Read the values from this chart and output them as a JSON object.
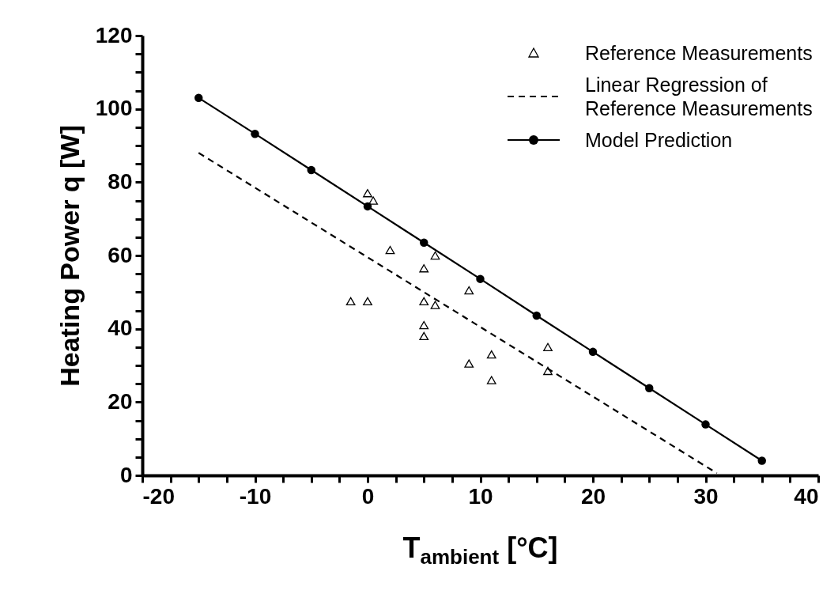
{
  "chart_data": {
    "type": "scatter",
    "xlabel": "T$_{ambient}$ [°C]",
    "ylabel": "Heating Power q [W]",
    "xlim": [
      -20,
      40
    ],
    "ylim": [
      0,
      120
    ],
    "xticks": [
      -20,
      {
        "value": -17.5,
        "label": null
      },
      {
        "value": -15,
        "label": null
      },
      {
        "value": -12.5,
        "label": null
      },
      -10,
      {
        "value": -7.5,
        "label": null
      },
      {
        "value": -5,
        "label": null
      },
      {
        "value": -2.5,
        "label": null
      },
      0,
      {
        "value": 2.5,
        "label": null
      },
      {
        "value": 5,
        "label": null
      },
      {
        "value": 7.5,
        "label": null
      },
      10,
      {
        "value": 12.5,
        "label": null
      },
      {
        "value": 15,
        "label": null
      },
      {
        "value": 17.5,
        "label": null
      },
      20,
      {
        "value": 22.5,
        "label": null
      },
      {
        "value": 25,
        "label": null
      },
      {
        "value": 27.5,
        "label": null
      },
      30,
      {
        "value": 32.5,
        "label": null
      },
      {
        "value": 35,
        "label": null
      },
      {
        "value": 37.5,
        "label": null
      },
      40
    ],
    "yticks": [
      0,
      {
        "value": 5,
        "label": null
      },
      {
        "value": 10,
        "label": null
      },
      {
        "value": 15,
        "label": null
      },
      20,
      {
        "value": 25,
        "label": null
      },
      {
        "value": 30,
        "label": null
      },
      {
        "value": 35,
        "label": null
      },
      40,
      {
        "value": 45,
        "label": null
      },
      {
        "value": 50,
        "label": null
      },
      {
        "value": 55,
        "label": null
      },
      60,
      {
        "value": 65,
        "label": null
      },
      {
        "value": 70,
        "label": null
      },
      {
        "value": 75,
        "label": null
      },
      80,
      {
        "value": 85,
        "label": null
      },
      {
        "value": 90,
        "label": null
      },
      {
        "value": 95,
        "label": null
      },
      100,
      {
        "value": 105,
        "label": null
      },
      {
        "value": 110,
        "label": null
      },
      {
        "value": 115,
        "label": null
      },
      120
    ],
    "legend": "top right",
    "grid": false,
    "series": [
      {
        "name": "Reference Measurements",
        "marker": "triangle",
        "color": "#000000",
        "x": [
          0,
          0.5,
          2,
          6,
          5,
          -1.5,
          0,
          5,
          6,
          9,
          5,
          5,
          9,
          11,
          11,
          16,
          16
        ],
        "values": [
          77,
          75,
          61.5,
          60,
          56.5,
          47.5,
          47.5,
          47.5,
          46.5,
          50.5,
          41,
          38,
          30.5,
          33,
          26,
          35,
          28.5
        ]
      },
      {
        "name": "Linear Regression of Reference Measurements",
        "type": "line",
        "marker": "none",
        "line_style": "dashed",
        "color": "#000000",
        "x": [
          -15,
          31
        ],
        "values": [
          88,
          0.6
        ]
      },
      {
        "name": "Model Prediction",
        "type": "line",
        "marker": "circle",
        "line_style": "solid",
        "color": "#000000",
        "x": [
          -15,
          -10,
          -5,
          0,
          5,
          10,
          15,
          20,
          25,
          30,
          35
        ],
        "values": [
          103,
          93.2,
          83.3,
          73.4,
          63.5,
          53.6,
          43.6,
          33.7,
          23.8,
          13.9,
          4
        ]
      }
    ]
  }
}
